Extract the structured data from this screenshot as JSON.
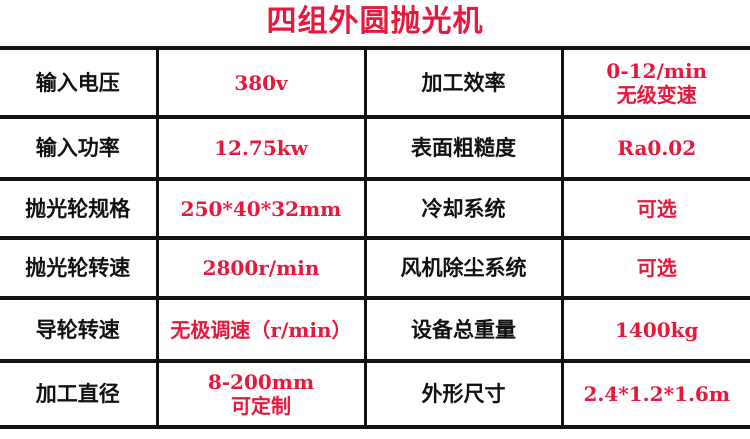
{
  "title": "四组外圆抛光机",
  "rows": [
    {
      "label1": "输入电压",
      "value1": [
        "380v"
      ],
      "label2": "加工效率",
      "value2": [
        "0-12/min",
        "无级变速"
      ]
    },
    {
      "label1": "输入功率",
      "value1": [
        "12.75kw"
      ],
      "label2": "表面粗糙度",
      "value2": [
        "Ra0.02"
      ]
    },
    {
      "label1": "抛光轮规格",
      "value1": [
        "250*40*32mm"
      ],
      "label2": "冷却系统",
      "value2": [
        "可选"
      ]
    },
    {
      "label1": "抛光轮转速",
      "value1": [
        "2800r/min"
      ],
      "label2": "风机除尘系统",
      "value2": [
        "可选"
      ]
    },
    {
      "label1": "导轮转速",
      "value1": [
        "无极调速（r/min）"
      ],
      "label2": "设备总重量",
      "value2": [
        "1400kg"
      ]
    },
    {
      "label1": "加工直径",
      "value1": [
        "8-200mm",
        "可定制"
      ],
      "label2": "外形尺寸",
      "value2": [
        "2.4*1.2*1.6m"
      ]
    }
  ],
  "colors": {
    "accent": "#e8173c",
    "text": "#111111",
    "border": "#111111"
  }
}
